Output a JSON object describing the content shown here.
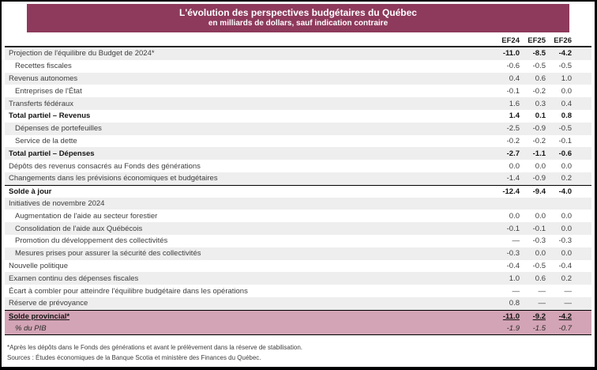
{
  "chart_data": {
    "type": "table",
    "title": "L'évolution des perspectives budgétaires du Québec",
    "subtitle": "en milliards de dollars, sauf indication contraire",
    "columns": [
      "EF24",
      "EF25",
      "EF26"
    ],
    "rows": [
      {
        "label": "Projection de l'équilibre du Budget de 2024*",
        "values": [
          "-11.0",
          "-8.5",
          "-4.2"
        ],
        "indent": 0,
        "values_bold": true
      },
      {
        "label": "Recettes fiscales",
        "values": [
          "-0.6",
          "-0.5",
          "-0.5"
        ],
        "indent": 1
      },
      {
        "label": "Revenus autonomes",
        "values": [
          "0.4",
          "0.6",
          "1.0"
        ],
        "indent": 0
      },
      {
        "label": "Entreprises de l'État",
        "values": [
          "-0.1",
          "-0.2",
          "0.0"
        ],
        "indent": 1
      },
      {
        "label": "Transferts fédéraux",
        "values": [
          "1.6",
          "0.3",
          "0.4"
        ],
        "indent": 0
      },
      {
        "label": "Total partiel – Revenus",
        "values": [
          "1.4",
          "0.1",
          "0.8"
        ],
        "indent": 0,
        "bold": true
      },
      {
        "label": "Dépenses de portefeuilles",
        "values": [
          "-2.5",
          "-0.9",
          "-0.5"
        ],
        "indent": 1
      },
      {
        "label": "Service de la dette",
        "values": [
          "-0.2",
          "-0.2",
          "-0.1"
        ],
        "indent": 1
      },
      {
        "label": "Total partiel – Dépenses",
        "values": [
          "-2.7",
          "-1.1",
          "-0.6"
        ],
        "indent": 0,
        "bold": true
      },
      {
        "label": "Dépôts des revenus consacrés au Fonds des générations",
        "values": [
          "0.0",
          "0.0",
          "0.0"
        ],
        "indent": 0
      },
      {
        "label": "Changements dans les prévisions économiques et budgétaires",
        "values": [
          "-1.4",
          "-0.9",
          "0.2"
        ],
        "indent": 0
      },
      {
        "label": "Solde à jour",
        "values": [
          "-12.4",
          "-9.4",
          "-4.0"
        ],
        "indent": 0,
        "bold": true,
        "border_top": true
      },
      {
        "label": "Initiatives de novembre 2024",
        "values": [
          "",
          "",
          ""
        ],
        "indent": 0
      },
      {
        "label": "Augmentation de l'aide au secteur forestier",
        "values": [
          "0.0",
          "0.0",
          "0.0"
        ],
        "indent": 1
      },
      {
        "label": "Consolidation de l'aide aux Québécois",
        "values": [
          "-0.1",
          "-0.1",
          "0.0"
        ],
        "indent": 1
      },
      {
        "label": "Promotion du développement des collectivités",
        "values": [
          "—",
          "-0.3",
          "-0.3"
        ],
        "indent": 1
      },
      {
        "label": "Mesures prises pour assurer la sécurité des collectivités",
        "values": [
          "-0.3",
          "0.0",
          "0.0"
        ],
        "indent": 1
      },
      {
        "label": "Nouvelle politique",
        "values": [
          "-0.4",
          "-0.5",
          "-0.4"
        ],
        "indent": 0
      },
      {
        "label": "Examen continu des dépenses fiscales",
        "values": [
          "1.0",
          "0.6",
          "0.2"
        ],
        "indent": 0
      },
      {
        "label": "Écart à combler pour atteindre l'équilibre budgétaire dans les opérations",
        "values": [
          "—",
          "—",
          "—"
        ],
        "indent": 0
      },
      {
        "label": "Réserve de prévoyance",
        "values": [
          "0.8",
          "—",
          "—"
        ],
        "indent": 0
      },
      {
        "label": "Solde provincial*",
        "values": [
          "-11.0",
          "-9.2",
          "-4.2"
        ],
        "indent": 0,
        "bold": true,
        "underline": true,
        "highlight": true,
        "border_top": true
      },
      {
        "label": "% du PIB",
        "values": [
          "-1.9",
          "-1.5",
          "-0.7"
        ],
        "indent": 1,
        "italic": true,
        "highlight": true
      }
    ]
  },
  "footnotes": [
    "*Après les dépôts dans le Fonds des générations et avant le prélèvement dans la réserve de stabilisation.",
    "Sources : Études économiques de la Banque Scotia et ministère des Finances du Québec."
  ],
  "colors": {
    "header_bg": "#8e3a5c",
    "highlight_bg": "#d3a4b5",
    "stripe_bg": "#eeeeee"
  }
}
